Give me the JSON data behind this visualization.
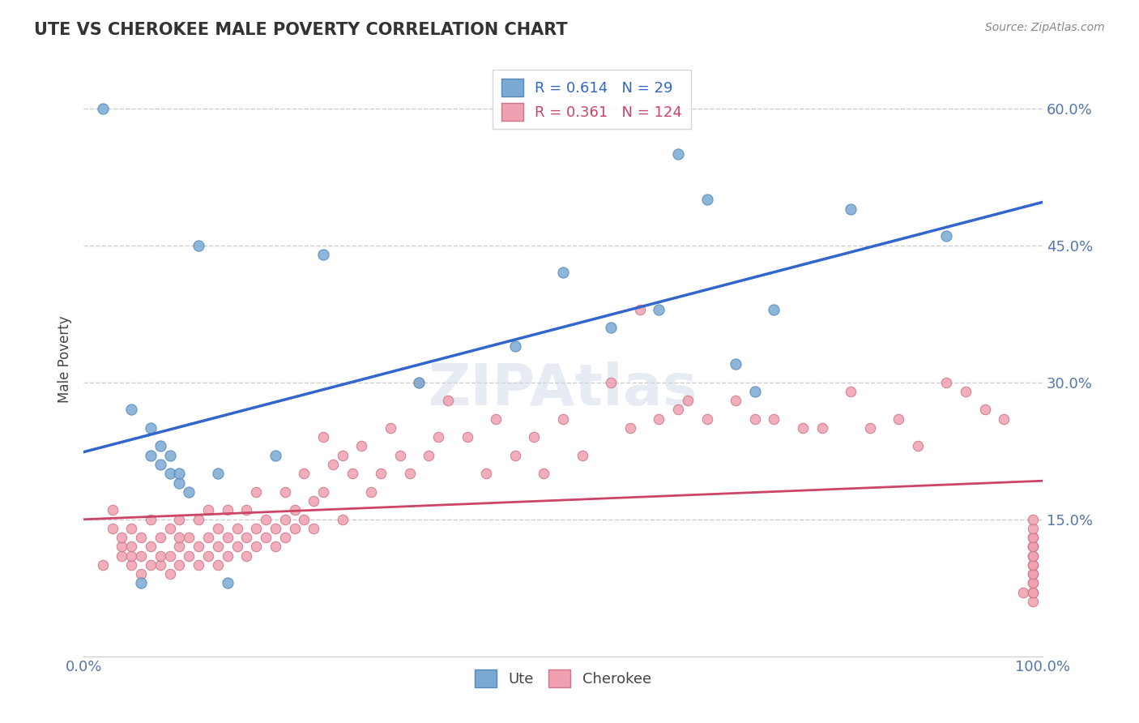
{
  "title": "UTE VS CHEROKEE MALE POVERTY CORRELATION CHART",
  "source_text": "Source: ZipAtlas.com",
  "xlabel": "",
  "ylabel": "Male Poverty",
  "xlim": [
    0,
    1
  ],
  "ylim": [
    0,
    0.65
  ],
  "yticks": [
    0.15,
    0.3,
    0.45,
    0.6
  ],
  "ytick_labels": [
    "15.0%",
    "30.0%",
    "45.0%",
    "60.0%"
  ],
  "xtick_labels": [
    "0.0%",
    "100.0%"
  ],
  "background_color": "#ffffff",
  "grid_color": "#cccccc",
  "watermark_text": "ZIPAtlas",
  "watermark_color": "#d0d8e8",
  "ute_color": "#7aaad4",
  "ute_edge_color": "#5588bb",
  "cherokee_color": "#f0a0b0",
  "cherokee_edge_color": "#cc7788",
  "ute_line_color": "#3366cc",
  "cherokee_line_color": "#cc4466",
  "axis_color": "#5577aa",
  "R_ute": 0.614,
  "N_ute": 29,
  "R_cherokee": 0.361,
  "N_cherokee": 124,
  "ute_x": [
    0.02,
    0.05,
    0.06,
    0.07,
    0.07,
    0.08,
    0.08,
    0.09,
    0.09,
    0.1,
    0.1,
    0.11,
    0.12,
    0.14,
    0.15,
    0.2,
    0.25,
    0.35,
    0.45,
    0.5,
    0.55,
    0.6,
    0.62,
    0.65,
    0.68,
    0.7,
    0.72,
    0.8,
    0.9
  ],
  "ute_y": [
    0.6,
    0.27,
    0.08,
    0.22,
    0.25,
    0.21,
    0.23,
    0.2,
    0.22,
    0.19,
    0.2,
    0.18,
    0.45,
    0.2,
    0.08,
    0.22,
    0.44,
    0.3,
    0.34,
    0.42,
    0.36,
    0.38,
    0.55,
    0.5,
    0.32,
    0.29,
    0.38,
    0.49,
    0.46
  ],
  "cherokee_x": [
    0.02,
    0.03,
    0.03,
    0.04,
    0.04,
    0.04,
    0.05,
    0.05,
    0.05,
    0.05,
    0.06,
    0.06,
    0.06,
    0.07,
    0.07,
    0.07,
    0.08,
    0.08,
    0.08,
    0.09,
    0.09,
    0.09,
    0.1,
    0.1,
    0.1,
    0.1,
    0.11,
    0.11,
    0.12,
    0.12,
    0.12,
    0.13,
    0.13,
    0.13,
    0.14,
    0.14,
    0.14,
    0.15,
    0.15,
    0.15,
    0.16,
    0.16,
    0.17,
    0.17,
    0.17,
    0.18,
    0.18,
    0.18,
    0.19,
    0.19,
    0.2,
    0.2,
    0.21,
    0.21,
    0.21,
    0.22,
    0.22,
    0.23,
    0.23,
    0.24,
    0.24,
    0.25,
    0.25,
    0.26,
    0.27,
    0.27,
    0.28,
    0.29,
    0.3,
    0.31,
    0.32,
    0.33,
    0.34,
    0.35,
    0.36,
    0.37,
    0.38,
    0.4,
    0.42,
    0.43,
    0.45,
    0.47,
    0.48,
    0.5,
    0.52,
    0.55,
    0.57,
    0.58,
    0.6,
    0.62,
    0.63,
    0.65,
    0.68,
    0.7,
    0.72,
    0.75,
    0.77,
    0.8,
    0.82,
    0.85,
    0.87,
    0.9,
    0.92,
    0.94,
    0.96,
    0.98,
    0.99,
    0.99,
    0.99,
    0.99,
    0.99,
    0.99,
    0.99,
    0.99,
    0.99,
    0.99,
    0.99,
    0.99,
    0.99,
    0.99,
    0.99,
    0.99,
    0.99,
    0.99
  ],
  "cherokee_y": [
    0.1,
    0.14,
    0.16,
    0.11,
    0.12,
    0.13,
    0.1,
    0.11,
    0.12,
    0.14,
    0.09,
    0.11,
    0.13,
    0.1,
    0.12,
    0.15,
    0.1,
    0.11,
    0.13,
    0.09,
    0.11,
    0.14,
    0.1,
    0.12,
    0.13,
    0.15,
    0.11,
    0.13,
    0.1,
    0.12,
    0.15,
    0.11,
    0.13,
    0.16,
    0.1,
    0.12,
    0.14,
    0.11,
    0.13,
    0.16,
    0.12,
    0.14,
    0.11,
    0.13,
    0.16,
    0.12,
    0.14,
    0.18,
    0.13,
    0.15,
    0.12,
    0.14,
    0.13,
    0.15,
    0.18,
    0.14,
    0.16,
    0.2,
    0.15,
    0.14,
    0.17,
    0.24,
    0.18,
    0.21,
    0.22,
    0.15,
    0.2,
    0.23,
    0.18,
    0.2,
    0.25,
    0.22,
    0.2,
    0.3,
    0.22,
    0.24,
    0.28,
    0.24,
    0.2,
    0.26,
    0.22,
    0.24,
    0.2,
    0.26,
    0.22,
    0.3,
    0.25,
    0.38,
    0.26,
    0.27,
    0.28,
    0.26,
    0.28,
    0.26,
    0.26,
    0.25,
    0.25,
    0.29,
    0.25,
    0.26,
    0.23,
    0.3,
    0.29,
    0.27,
    0.26,
    0.07,
    0.08,
    0.09,
    0.1,
    0.11,
    0.12,
    0.13,
    0.06,
    0.07,
    0.07,
    0.08,
    0.09,
    0.1,
    0.11,
    0.12,
    0.12,
    0.13,
    0.14,
    0.15
  ]
}
